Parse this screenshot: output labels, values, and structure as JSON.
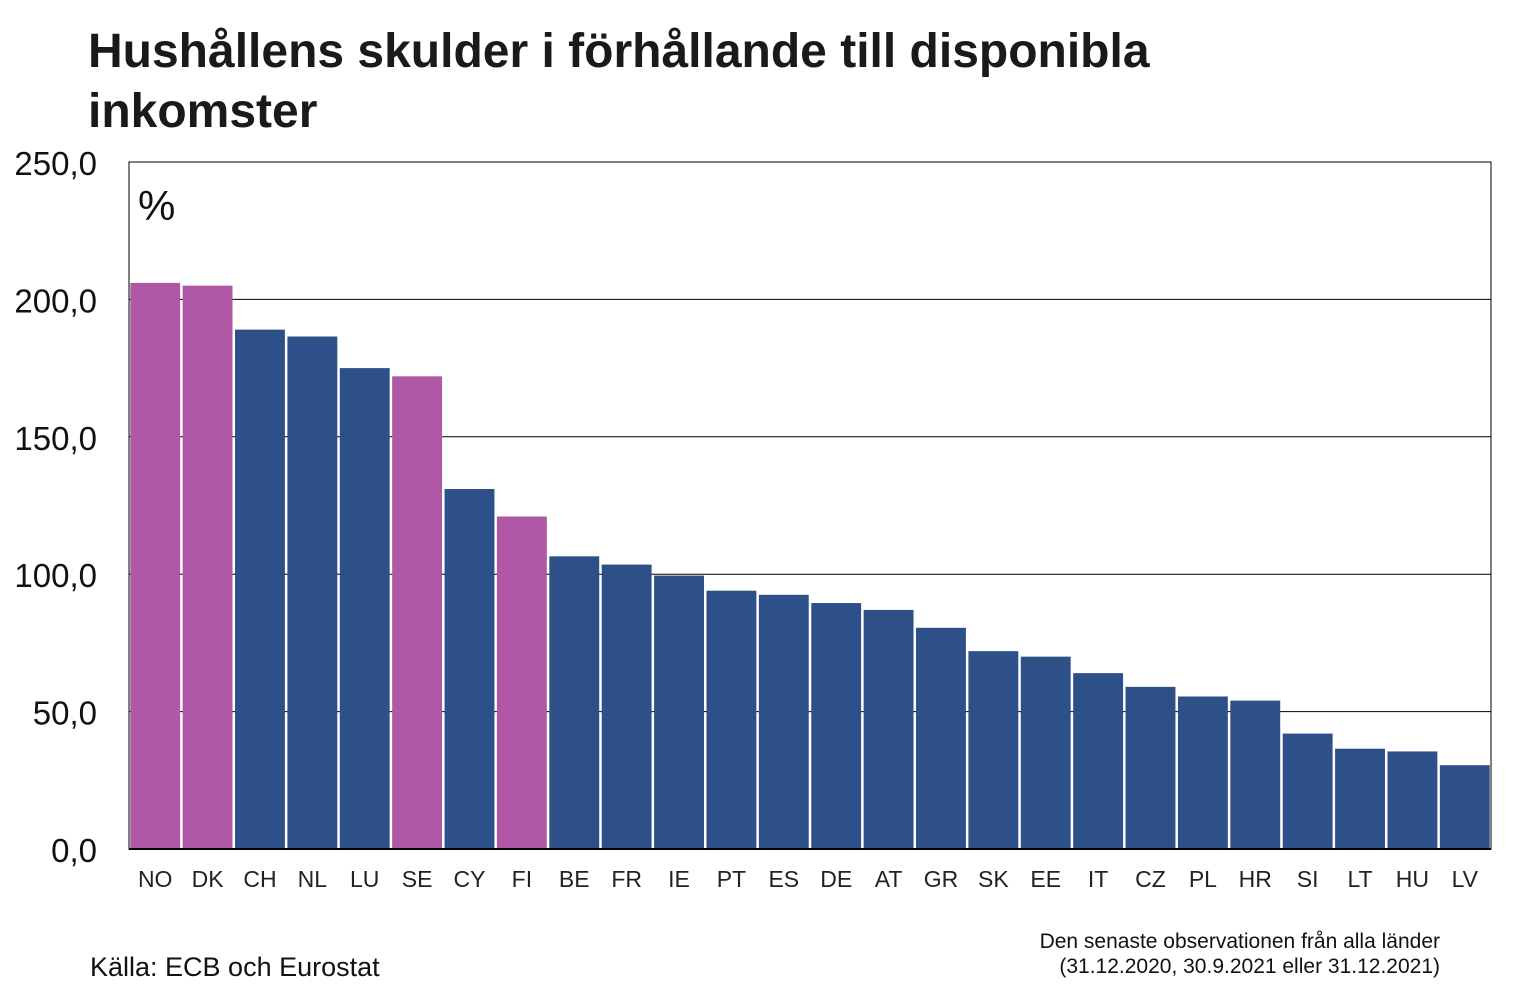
{
  "chart_data": {
    "type": "bar",
    "title": "Hushållens skulder i förhållande till disponibla inkomster",
    "unit_label": "%",
    "categories": [
      "NO",
      "DK",
      "CH",
      "NL",
      "LU",
      "SE",
      "CY",
      "FI",
      "BE",
      "FR",
      "IE",
      "PT",
      "ES",
      "DE",
      "AT",
      "GR",
      "SK",
      "EE",
      "IT",
      "CZ",
      "PL",
      "HR",
      "SI",
      "LT",
      "HU",
      "LV"
    ],
    "values": [
      206,
      205,
      189,
      186.5,
      175,
      172,
      131,
      121,
      106.5,
      103.5,
      99.5,
      94,
      92.5,
      89.5,
      87,
      80.5,
      72,
      70,
      64,
      59,
      55.5,
      54,
      42,
      36.5,
      35.5,
      30.5
    ],
    "highlighted": [
      "NO",
      "DK",
      "SE",
      "FI"
    ],
    "ylim": [
      0,
      250
    ],
    "yticks": [
      0,
      50,
      100,
      150,
      200,
      250
    ],
    "ytick_labels": [
      "0,0",
      "50,0",
      "100,0",
      "150,0",
      "200,0",
      "250,0"
    ],
    "grid": true,
    "colors": {
      "highlight": "#b058a5",
      "default": "#2e5088",
      "grid": "#000000",
      "frame": "#000000"
    }
  },
  "footer": {
    "source": "Källa: ECB och Eurostat",
    "note_line1": "Den senaste observationen från alla länder",
    "note_line2": "(31.12.2020, 30.9.2021 eller 31.12.2021)"
  }
}
